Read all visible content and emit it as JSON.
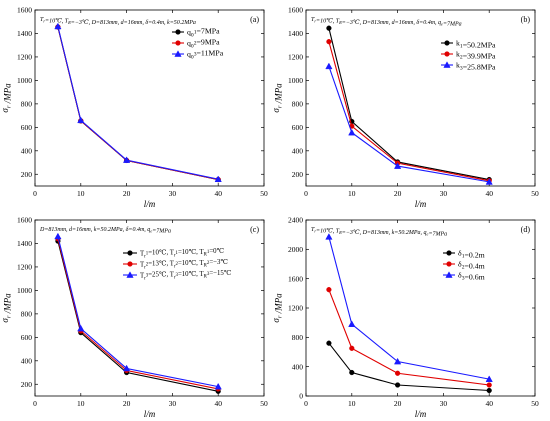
{
  "chart_data": [
    {
      "id": "a",
      "type": "line",
      "panel_label": "(a)",
      "condition_text": "T_r=10℃, T_R=−3℃, D=813mm, d=16mm, δ=0.4m, k=50.2MPa",
      "xlabel": "l/m",
      "ylabel": "σ_r /MPa",
      "xlim": [
        0,
        50
      ],
      "ylim": [
        100,
        1600
      ],
      "xticks": [
        0,
        10,
        20,
        30,
        40,
        50
      ],
      "yticks": [
        200,
        400,
        600,
        800,
        1000,
        1200,
        1400,
        1600
      ],
      "x": [
        5,
        10,
        20,
        40
      ],
      "legend_position": "top-right",
      "series": [
        {
          "name": "q_0^1=7MPa",
          "color": "#000000",
          "marker": "circle",
          "values": [
            1455,
            655,
            318,
            155
          ]
        },
        {
          "name": "q_0^2=9MPa",
          "color": "#e00000",
          "marker": "circle",
          "values": [
            1455,
            655,
            318,
            155
          ]
        },
        {
          "name": "q_0^3=11MPa",
          "color": "#1a1aff",
          "marker": "triangle",
          "values": [
            1460,
            660,
            321,
            158
          ]
        }
      ]
    },
    {
      "id": "b",
      "type": "line",
      "panel_label": "(b)",
      "condition_text": "T_r=10℃, T_R=−3℃, D=813mm, d=16mm, δ=0.4m, q_e=7MPa",
      "xlabel": "l/m",
      "ylabel": "σ_r /MPa",
      "xlim": [
        0,
        50
      ],
      "ylim": [
        100,
        1600
      ],
      "xticks": [
        0,
        10,
        20,
        30,
        40,
        50
      ],
      "yticks": [
        200,
        400,
        600,
        800,
        1000,
        1200,
        1400,
        1600
      ],
      "x": [
        5,
        10,
        20,
        40
      ],
      "legend_position": "top-right",
      "series": [
        {
          "name": "k_1=50.2MPa",
          "color": "#000000",
          "marker": "circle",
          "values": [
            1445,
            650,
            305,
            155
          ]
        },
        {
          "name": "k_2=39.9MPa",
          "color": "#e00000",
          "marker": "circle",
          "values": [
            1330,
            610,
            295,
            145
          ]
        },
        {
          "name": "k_3=25.8MPa",
          "color": "#1a1aff",
          "marker": "triangle",
          "values": [
            1120,
            555,
            270,
            135
          ]
        }
      ]
    },
    {
      "id": "c",
      "type": "line",
      "panel_label": "(c)",
      "condition_text": "D=813mm, d=16mm, k=50.2MPa, δ=0.4m, q_e=7MPa",
      "xlabel": "l/m",
      "ylabel": "σ_r /MPa",
      "xlim": [
        0,
        50
      ],
      "ylim": [
        100,
        1600
      ],
      "xticks": [
        0,
        10,
        20,
        30,
        40,
        50
      ],
      "yticks": [
        200,
        400,
        600,
        800,
        1000,
        1200,
        1400,
        1600
      ],
      "x": [
        5,
        10,
        20,
        40
      ],
      "legend_position": "top-right",
      "series": [
        {
          "name": "T_r^1=10℃, T_r^1=10℃, T_R^1=0℃",
          "color": "#000000",
          "marker": "circle",
          "values": [
            1420,
            640,
            300,
            140
          ]
        },
        {
          "name": "T_r^2=13℃, T_r^2=10℃, T_R^2=−3℃",
          "color": "#e00000",
          "marker": "circle",
          "values": [
            1440,
            655,
            318,
            160
          ]
        },
        {
          "name": "T_r^3=25℃, T_r^3=10℃, T_R^3=−15℃",
          "color": "#1a1aff",
          "marker": "triangle",
          "values": [
            1460,
            675,
            335,
            180
          ]
        }
      ]
    },
    {
      "id": "d",
      "type": "line",
      "panel_label": "(d)",
      "condition_text": "T_r=10℃, T_R=−3℃, D=813mm, k=50.2MPa, q_e=7MPa",
      "xlabel": "l/m",
      "ylabel": "σ_r /MPa",
      "xlim": [
        0,
        50
      ],
      "ylim": [
        0,
        2400
      ],
      "xticks": [
        0,
        10,
        20,
        30,
        40,
        50
      ],
      "yticks": [
        0,
        400,
        800,
        1200,
        1600,
        2000,
        2400
      ],
      "x": [
        5,
        10,
        20,
        40
      ],
      "legend_position": "top-right",
      "series": [
        {
          "name": "δ_1=0.2m",
          "color": "#000000",
          "marker": "circle",
          "values": [
            720,
            320,
            150,
            75
          ]
        },
        {
          "name": "δ_2=0.4m",
          "color": "#e00000",
          "marker": "circle",
          "values": [
            1450,
            650,
            310,
            150
          ]
        },
        {
          "name": "δ_3=0.6m",
          "color": "#1a1aff",
          "marker": "triangle",
          "values": [
            2170,
            980,
            470,
            230
          ]
        }
      ]
    }
  ]
}
